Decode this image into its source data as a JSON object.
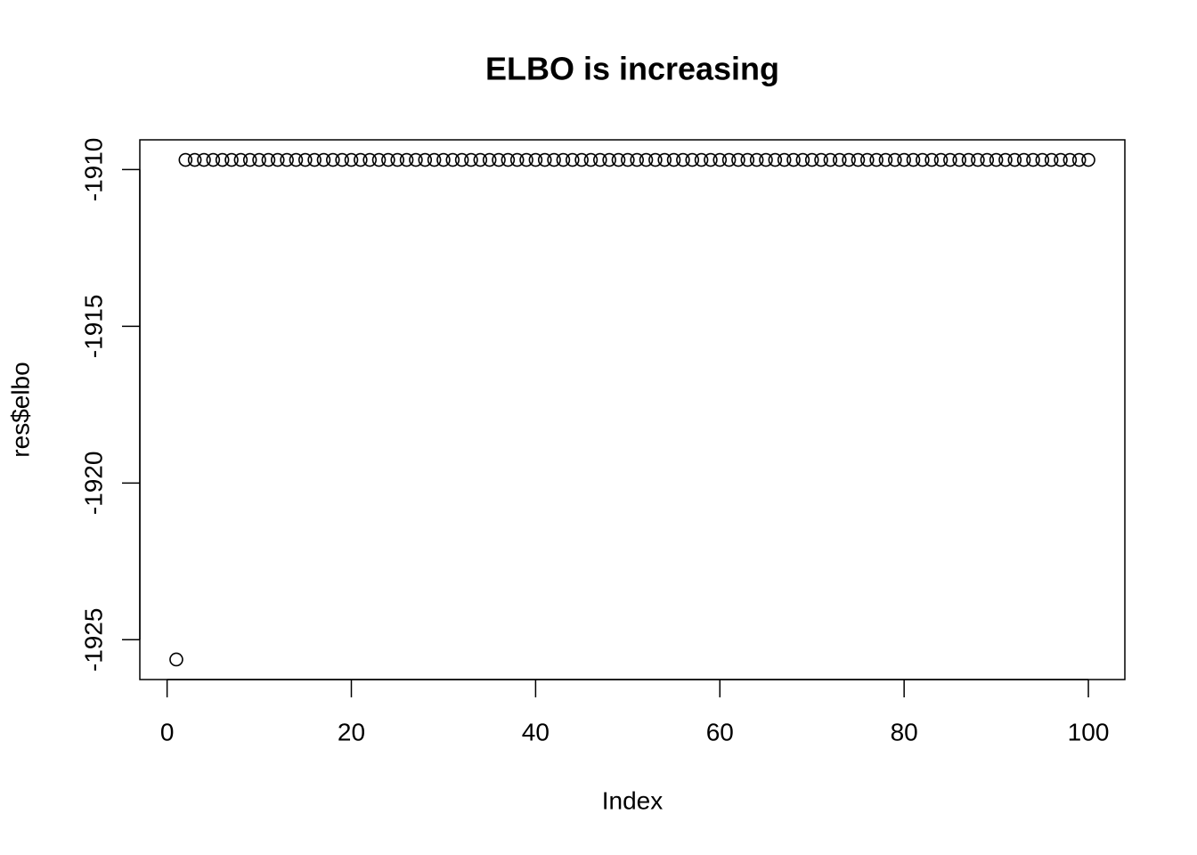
{
  "chart_data": {
    "type": "scatter",
    "title": "ELBO is increasing",
    "xlabel": "Index",
    "ylabel": "res$elbo",
    "x": [
      1,
      2,
      3,
      4,
      5,
      6,
      7,
      8,
      9,
      10,
      11,
      12,
      13,
      14,
      15,
      16,
      17,
      18,
      19,
      20,
      21,
      22,
      23,
      24,
      25,
      26,
      27,
      28,
      29,
      30,
      31,
      32,
      33,
      34,
      35,
      36,
      37,
      38,
      39,
      40,
      41,
      42,
      43,
      44,
      45,
      46,
      47,
      48,
      49,
      50,
      51,
      52,
      53,
      54,
      55,
      56,
      57,
      58,
      59,
      60,
      61,
      62,
      63,
      64,
      65,
      66,
      67,
      68,
      69,
      70,
      71,
      72,
      73,
      74,
      75,
      76,
      77,
      78,
      79,
      80,
      81,
      82,
      83,
      84,
      85,
      86,
      87,
      88,
      89,
      90,
      91,
      92,
      93,
      94,
      95,
      96,
      97,
      98,
      99,
      100
    ],
    "values": [
      -1925.63,
      -1909.69,
      -1909.69,
      -1909.69,
      -1909.69,
      -1909.69,
      -1909.69,
      -1909.69,
      -1909.69,
      -1909.69,
      -1909.69,
      -1909.69,
      -1909.69,
      -1909.69,
      -1909.69,
      -1909.69,
      -1909.69,
      -1909.69,
      -1909.69,
      -1909.69,
      -1909.69,
      -1909.69,
      -1909.69,
      -1909.69,
      -1909.69,
      -1909.69,
      -1909.69,
      -1909.69,
      -1909.69,
      -1909.69,
      -1909.69,
      -1909.69,
      -1909.69,
      -1909.69,
      -1909.69,
      -1909.69,
      -1909.69,
      -1909.69,
      -1909.69,
      -1909.69,
      -1909.69,
      -1909.69,
      -1909.69,
      -1909.69,
      -1909.69,
      -1909.69,
      -1909.69,
      -1909.69,
      -1909.69,
      -1909.69,
      -1909.69,
      -1909.69,
      -1909.69,
      -1909.69,
      -1909.69,
      -1909.69,
      -1909.69,
      -1909.69,
      -1909.69,
      -1909.69,
      -1909.69,
      -1909.69,
      -1909.69,
      -1909.69,
      -1909.69,
      -1909.69,
      -1909.69,
      -1909.69,
      -1909.69,
      -1909.69,
      -1909.69,
      -1909.69,
      -1909.69,
      -1909.69,
      -1909.69,
      -1909.69,
      -1909.69,
      -1909.69,
      -1909.69,
      -1909.69,
      -1909.69,
      -1909.69,
      -1909.69,
      -1909.69,
      -1909.69,
      -1909.69,
      -1909.69,
      -1909.69,
      -1909.69,
      -1909.69,
      -1909.69,
      -1909.69,
      -1909.69,
      -1909.69,
      -1909.69,
      -1909.69,
      -1909.69,
      -1909.69,
      -1909.69,
      -1909.69
    ],
    "color": "#000000",
    "xlim": [
      -2.96,
      103.96
    ],
    "xticks": [
      0,
      20,
      40,
      60,
      80,
      100
    ],
    "ylim": [
      -1926.27,
      -1909.05
    ],
    "yticks": [
      -1925,
      -1920,
      -1915,
      -1910
    ]
  }
}
